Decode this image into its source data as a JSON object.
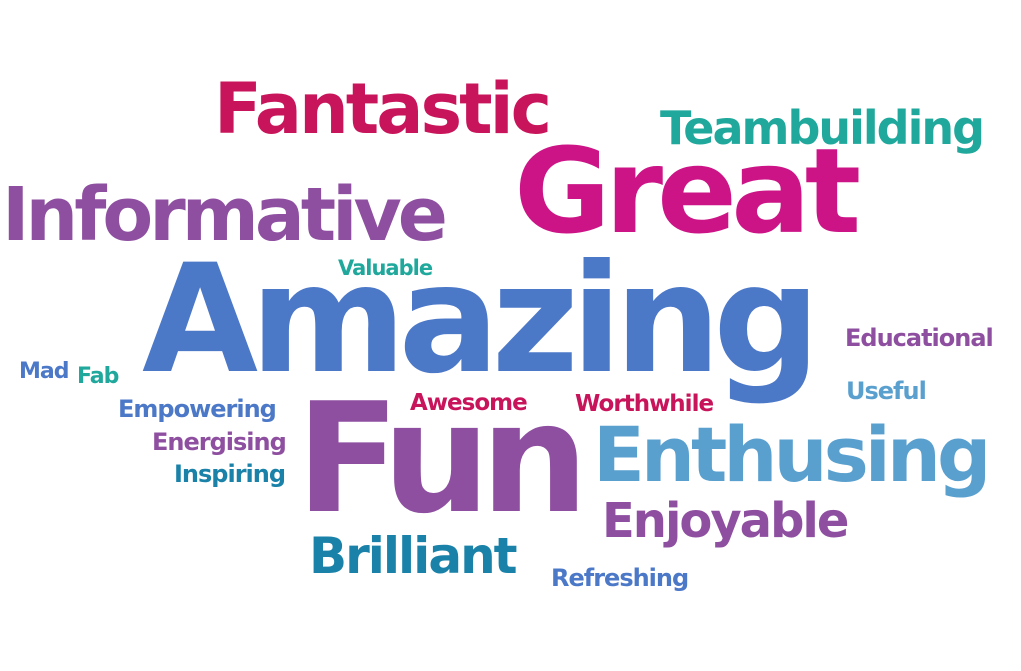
{
  "words": [
    {
      "text": "Fantastic",
      "color": "#c8145a"
    },
    {
      "text": "Teambuilding",
      "color": "#1fa89b"
    },
    {
      "text": "Great",
      "color": "#cc1486"
    },
    {
      "text": "Informative",
      "color": "#8e4fa0"
    },
    {
      "text": "Valuable",
      "color": "#1fa89b"
    },
    {
      "text": "Amazing",
      "color": "#4c78c8"
    },
    {
      "text": "Educational",
      "color": "#8e4fa0"
    },
    {
      "text": "Mad",
      "color": "#4c78c8"
    },
    {
      "text": "Fab",
      "color": "#1fa89b"
    },
    {
      "text": "Useful",
      "color": "#5aa0cf"
    },
    {
      "text": "Empowering",
      "color": "#4c78c8"
    },
    {
      "text": "Awesome",
      "color": "#c8145a"
    },
    {
      "text": "Worthwhile",
      "color": "#c8145a"
    },
    {
      "text": "Energising",
      "color": "#8e4fa0"
    },
    {
      "text": "Fun",
      "color": "#8e4fa0"
    },
    {
      "text": "Enthusing",
      "color": "#5aa0cf"
    },
    {
      "text": "Inspiring",
      "color": "#1a82a8"
    },
    {
      "text": "Enjoyable",
      "color": "#8e4fa0"
    },
    {
      "text": "Brilliant",
      "color": "#1a82a8"
    },
    {
      "text": "Refreshing",
      "color": "#4c78c8"
    }
  ]
}
